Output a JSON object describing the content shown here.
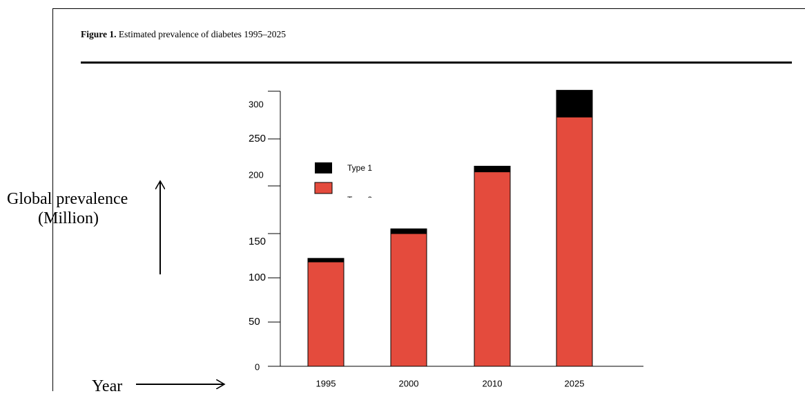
{
  "figure": {
    "caption_label": "Figure 1.",
    "caption_text": "Estimated prevalence of diabetes 1995–2025"
  },
  "annotations": {
    "ylabel_line1": "Global prevalence",
    "ylabel_line2": "(Million)",
    "xlabel": "Year"
  },
  "chart_data": {
    "type": "bar",
    "stacked": true,
    "categories": [
      "1995",
      "2000",
      "2010",
      "2025"
    ],
    "series": [
      {
        "name": "Type 2",
        "values": [
          118,
          150,
          215,
          273
        ],
        "color": "#e44b3d"
      },
      {
        "name": "Type 1",
        "values": [
          4,
          5,
          6,
          28
        ],
        "color": "#000000"
      }
    ],
    "yticks": [
      "0",
      "50",
      "100",
      "150",
      "200",
      "250",
      "300"
    ],
    "legend": {
      "placement": "upper-left",
      "entries": [
        "Type 1",
        "Type 2"
      ]
    },
    "grid": false
  }
}
